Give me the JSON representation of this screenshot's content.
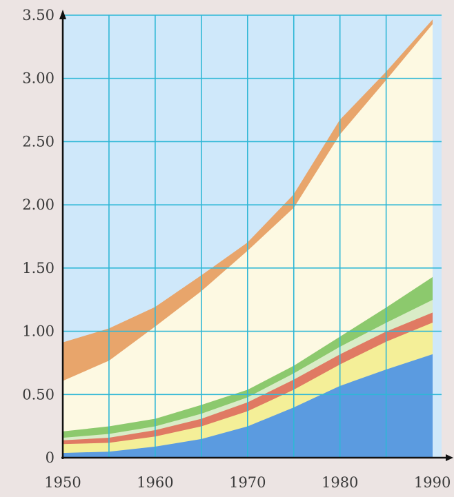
{
  "chart_data": {
    "type": "area",
    "title": "",
    "xlabel": "",
    "ylabel": "",
    "xlim": [
      1950,
      1991
    ],
    "ylim": [
      0,
      3.5
    ],
    "grid": true,
    "x_ticks": [
      1950,
      1960,
      1970,
      1980,
      1990
    ],
    "x_tick_labels": [
      "1950",
      "1960",
      "1970",
      "1980",
      "1990"
    ],
    "y_ticks": [
      0,
      0.5,
      1.0,
      1.5,
      2.0,
      2.5,
      3.0,
      3.5
    ],
    "y_tick_labels": [
      "0",
      "0.50",
      "1.00",
      "1.50",
      "2.00",
      "2.50",
      "3.00",
      "3.50"
    ],
    "x": [
      1950,
      1955,
      1960,
      1965,
      1970,
      1975,
      1980,
      1985,
      1990
    ],
    "stack_order": "bottom-to-top",
    "series": [
      {
        "color": "#5b9be0",
        "values": [
          0.04,
          0.05,
          0.09,
          0.15,
          0.25,
          0.4,
          0.57,
          0.7,
          0.82
        ]
      },
      {
        "color": "#f4ef98",
        "values": [
          0.07,
          0.07,
          0.08,
          0.1,
          0.12,
          0.14,
          0.17,
          0.22,
          0.25
        ]
      },
      {
        "color": "#e07a63",
        "values": [
          0.03,
          0.04,
          0.05,
          0.06,
          0.07,
          0.08,
          0.08,
          0.08,
          0.08
        ]
      },
      {
        "color": "#d9ecc7",
        "values": [
          0.02,
          0.03,
          0.03,
          0.04,
          0.04,
          0.05,
          0.06,
          0.07,
          0.1
        ]
      },
      {
        "color": "#8cc96d",
        "values": [
          0.05,
          0.06,
          0.06,
          0.07,
          0.06,
          0.06,
          0.08,
          0.12,
          0.18
        ]
      },
      {
        "color": "#fdf9e2",
        "values": [
          0.4,
          0.52,
          0.73,
          0.9,
          1.1,
          1.25,
          1.6,
          1.8,
          2.0
        ]
      },
      {
        "color": "#e8a56b",
        "values": [
          0.3,
          0.25,
          0.15,
          0.12,
          0.06,
          0.1,
          0.11,
          0.06,
          0.03
        ]
      }
    ]
  }
}
